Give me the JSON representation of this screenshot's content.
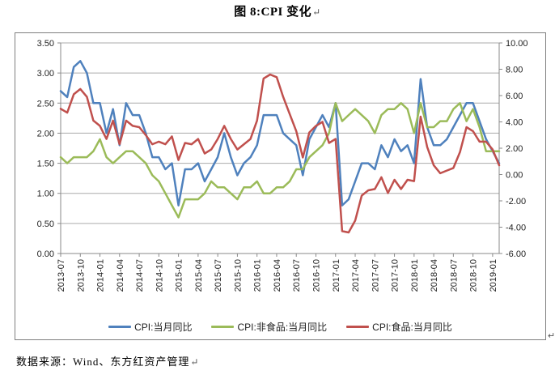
{
  "page": {
    "title": "图 8:CPI 变化",
    "return_mark": "↵",
    "source_note": "数据来源：Wind、东方红资产管理"
  },
  "chart_data": {
    "type": "line",
    "title": "图 8:CPI 变化",
    "grid": true,
    "legend_position": "bottom",
    "x": [
      "2013-07",
      "2013-08",
      "2013-09",
      "2013-10",
      "2013-11",
      "2013-12",
      "2014-01",
      "2014-02",
      "2014-03",
      "2014-04",
      "2014-05",
      "2014-06",
      "2014-07",
      "2014-08",
      "2014-09",
      "2014-10",
      "2014-11",
      "2014-12",
      "2015-01",
      "2015-02",
      "2015-03",
      "2015-04",
      "2015-05",
      "2015-06",
      "2015-07",
      "2015-08",
      "2015-09",
      "2015-10",
      "2015-11",
      "2015-12",
      "2016-01",
      "2016-02",
      "2016-03",
      "2016-04",
      "2016-05",
      "2016-06",
      "2016-07",
      "2016-08",
      "2016-09",
      "2016-10",
      "2016-11",
      "2016-12",
      "2017-01",
      "2017-02",
      "2017-03",
      "2017-04",
      "2017-05",
      "2017-06",
      "2017-07",
      "2017-08",
      "2017-09",
      "2017-10",
      "2017-11",
      "2017-12",
      "2018-01",
      "2018-02",
      "2018-03",
      "2018-04",
      "2018-05",
      "2018-06",
      "2018-07",
      "2018-08",
      "2018-09",
      "2018-10",
      "2018-11",
      "2018-12",
      "2019-01",
      "2019-02"
    ],
    "x_tick_every": 3,
    "x_tick_labels": [
      "2013-07",
      "2013-10",
      "2014-01",
      "2014-04",
      "2014-07",
      "2014-10",
      "2015-01",
      "2015-04",
      "2015-07",
      "2015-10",
      "2016-01",
      "2016-04",
      "2016-07",
      "2016-10",
      "2017-01",
      "2017-04",
      "2017-07",
      "2017-10",
      "2018-01",
      "2018-04",
      "2018-07",
      "2018-10",
      "2019-01"
    ],
    "axes": {
      "left": {
        "min": 0,
        "max": 3.5,
        "tick_labels": [
          "3.50",
          "3.00",
          "2.50",
          "2.00",
          "1.50",
          "1.00",
          "0.50",
          "0.00"
        ]
      },
      "right": {
        "min": -6,
        "max": 10,
        "tick_labels": [
          "10.00",
          "8.00",
          "6.00",
          "4.00",
          "2.00",
          "0.00",
          "-2.00",
          "-4.00",
          "-6.00"
        ]
      }
    },
    "series": [
      {
        "name": "CPI:当月同比",
        "axis": "left",
        "color": "#4F81BD",
        "values": [
          2.7,
          2.6,
          3.1,
          3.2,
          3.0,
          2.5,
          2.5,
          2.0,
          2.4,
          1.8,
          2.5,
          2.3,
          2.3,
          2.0,
          1.6,
          1.6,
          1.4,
          1.5,
          0.8,
          1.4,
          1.4,
          1.5,
          1.2,
          1.4,
          1.6,
          2.0,
          1.6,
          1.3,
          1.5,
          1.6,
          1.8,
          2.3,
          2.3,
          2.3,
          2.0,
          1.9,
          1.8,
          1.3,
          1.9,
          2.1,
          2.3,
          2.1,
          2.5,
          0.8,
          0.9,
          1.2,
          1.5,
          1.5,
          1.4,
          1.8,
          1.6,
          1.9,
          1.7,
          1.8,
          1.5,
          2.9,
          2.1,
          1.8,
          1.8,
          1.9,
          2.1,
          2.3,
          2.5,
          2.5,
          2.2,
          1.9,
          1.7,
          1.5
        ]
      },
      {
        "name": "CPI:非食品:当月同比",
        "axis": "left",
        "color": "#9BBB59",
        "values": [
          1.6,
          1.5,
          1.6,
          1.6,
          1.6,
          1.7,
          1.9,
          1.6,
          1.5,
          1.6,
          1.7,
          1.7,
          1.6,
          1.5,
          1.3,
          1.2,
          1.0,
          0.8,
          0.6,
          0.9,
          0.9,
          0.9,
          1.0,
          1.2,
          1.1,
          1.1,
          1.0,
          0.9,
          1.1,
          1.1,
          1.2,
          1.0,
          1.0,
          1.1,
          1.1,
          1.2,
          1.4,
          1.4,
          1.6,
          1.7,
          1.8,
          2.0,
          2.5,
          2.2,
          2.3,
          2.4,
          2.3,
          2.2,
          2.0,
          2.3,
          2.4,
          2.4,
          2.5,
          2.4,
          2.0,
          2.5,
          2.1,
          2.1,
          2.2,
          2.2,
          2.4,
          2.5,
          2.2,
          2.4,
          2.1,
          1.7,
          1.7,
          1.7
        ]
      },
      {
        "name": "CPI:食品:当月同比",
        "axis": "right",
        "color": "#C0504D",
        "values": [
          5.0,
          4.7,
          6.1,
          6.5,
          5.9,
          4.1,
          3.7,
          2.7,
          4.1,
          2.3,
          4.1,
          3.7,
          3.6,
          3.0,
          2.3,
          2.5,
          2.3,
          2.9,
          1.1,
          2.4,
          2.3,
          2.7,
          1.6,
          1.9,
          2.7,
          3.7,
          2.7,
          1.9,
          2.3,
          2.7,
          4.1,
          7.3,
          7.6,
          7.4,
          5.9,
          4.6,
          3.3,
          1.3,
          3.2,
          3.7,
          4.0,
          2.4,
          2.7,
          -4.3,
          -4.4,
          -3.5,
          -1.6,
          -1.2,
          -1.1,
          -0.2,
          -1.4,
          -0.4,
          -1.1,
          -0.4,
          -0.5,
          4.4,
          2.1,
          0.7,
          0.1,
          0.3,
          0.5,
          1.7,
          3.6,
          3.3,
          2.5,
          2.5,
          1.9,
          0.7
        ]
      }
    ],
    "style": {
      "grid_color": "#ABABAB",
      "axis_color": "#898989",
      "label_color": "#1f1f1f",
      "line_width": 2.5
    }
  }
}
